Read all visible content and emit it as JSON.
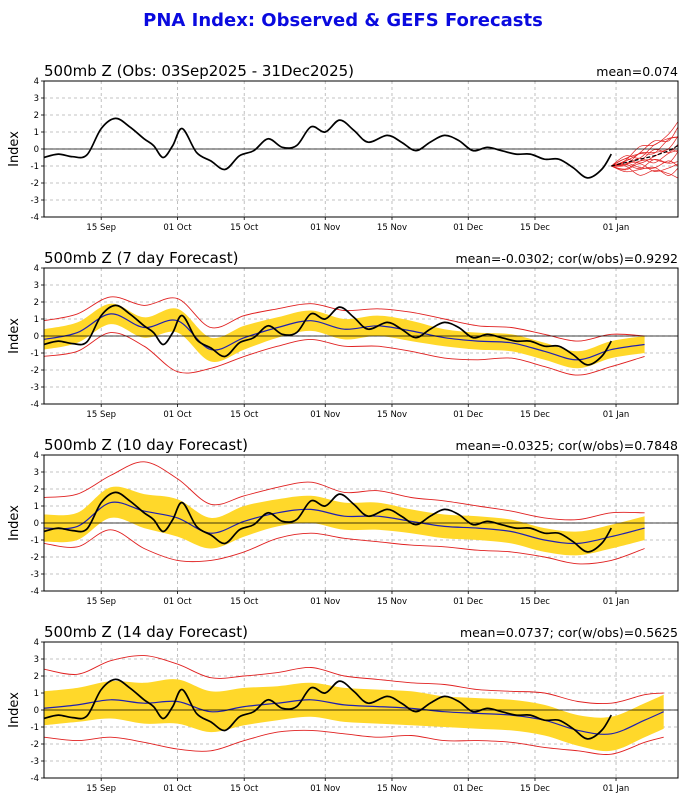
{
  "title": "PNA Index: Observed & GEFS Forecasts",
  "colors": {
    "title": "#0a0adf",
    "observed": "#000000",
    "ensemble_mean": "#2020b0",
    "spread": "#ffd82a",
    "bounds": "#e02020"
  },
  "chart_data": [
    {
      "type": "line",
      "title": "500mb Z (Obs: 03Sep2025 - 31Dec2025)",
      "stat": "mean=0.074",
      "ylabel": "Index",
      "ylim": [
        -4,
        4
      ],
      "yticks": [
        -4,
        -3,
        -2,
        -1,
        0,
        1,
        2,
        3,
        4
      ],
      "xticks": [
        "15 Sep",
        "01 Oct",
        "15 Oct",
        "01 Nov",
        "15 Nov",
        "01 Dec",
        "15 Dec",
        "01 Jan"
      ],
      "grid": true
    },
    {
      "type": "line",
      "title": "500mb Z (7 day Forecast)",
      "stat": "mean=-0.0302; cor(w/obs)=0.9292",
      "ylabel": "Index",
      "ylim": [
        -4,
        4
      ],
      "yticks": [
        -4,
        -3,
        -2,
        -1,
        0,
        1,
        2,
        3,
        4
      ],
      "xticks": [
        "15 Sep",
        "01 Oct",
        "15 Oct",
        "01 Nov",
        "15 Nov",
        "01 Dec",
        "15 Dec",
        "01 Jan"
      ],
      "grid": true
    },
    {
      "type": "line",
      "title": "500mb Z (10 day Forecast)",
      "stat": "mean=-0.0325; cor(w/obs)=0.7848",
      "ylabel": "Index",
      "ylim": [
        -4,
        4
      ],
      "yticks": [
        -4,
        -3,
        -2,
        -1,
        0,
        1,
        2,
        3,
        4
      ],
      "xticks": [
        "15 Sep",
        "01 Oct",
        "15 Oct",
        "01 Nov",
        "15 Nov",
        "01 Dec",
        "15 Dec",
        "01 Jan"
      ],
      "grid": true
    },
    {
      "type": "line",
      "title": "500mb Z (14 day Forecast)",
      "stat": "mean=0.0737; cor(w/obs)=0.5625",
      "ylabel": "Index",
      "ylim": [
        -4,
        4
      ],
      "yticks": [
        -4,
        -3,
        -2,
        -1,
        0,
        1,
        2,
        3,
        4
      ],
      "xticks": [
        "15 Sep",
        "01 Oct",
        "15 Oct",
        "01 Nov",
        "15 Nov",
        "01 Dec",
        "15 Dec",
        "01 Jan"
      ],
      "grid": true
    }
  ],
  "observed": {
    "x": [
      "2025-09-03",
      "2025-09-06",
      "2025-09-09",
      "2025-09-12",
      "2025-09-15",
      "2025-09-18",
      "2025-09-21",
      "2025-09-24",
      "2025-09-26",
      "2025-09-28",
      "2025-09-30",
      "2025-10-02",
      "2025-10-05",
      "2025-10-08",
      "2025-10-11",
      "2025-10-14",
      "2025-10-17",
      "2025-10-20",
      "2025-10-23",
      "2025-10-26",
      "2025-10-29",
      "2025-11-01",
      "2025-11-04",
      "2025-11-07",
      "2025-11-10",
      "2025-11-14",
      "2025-11-17",
      "2025-11-20",
      "2025-11-23",
      "2025-11-26",
      "2025-11-29",
      "2025-12-02",
      "2025-12-05",
      "2025-12-08",
      "2025-12-11",
      "2025-12-14",
      "2025-12-17",
      "2025-12-20",
      "2025-12-23",
      "2025-12-26",
      "2025-12-29",
      "2025-12-31"
    ],
    "y": [
      -0.5,
      -0.3,
      -0.45,
      -0.35,
      1.2,
      1.8,
      1.3,
      0.6,
      0.2,
      -0.5,
      0.2,
      1.2,
      -0.2,
      -0.7,
      -1.2,
      -0.4,
      -0.1,
      0.6,
      0.1,
      0.2,
      1.3,
      1.0,
      1.7,
      1.1,
      0.4,
      0.8,
      0.4,
      -0.1,
      0.4,
      0.8,
      0.5,
      -0.1,
      0.1,
      -0.1,
      -0.3,
      -0.3,
      -0.6,
      -0.6,
      -1.1,
      -1.7,
      -1.2,
      -0.3
    ]
  },
  "forecasts": [
    null,
    {
      "x": [
        "2025-09-03",
        "2025-09-10",
        "2025-09-17",
        "2025-09-24",
        "2025-10-01",
        "2025-10-08",
        "2025-10-15",
        "2025-10-22",
        "2025-10-29",
        "2025-11-05",
        "2025-11-12",
        "2025-11-19",
        "2025-11-26",
        "2025-12-03",
        "2025-12-10",
        "2025-12-17",
        "2025-12-24",
        "2025-12-31",
        "2026-01-07"
      ],
      "mean": [
        -0.2,
        0.2,
        1.3,
        0.5,
        0.9,
        -0.8,
        -0.1,
        0.5,
        0.9,
        0.4,
        0.6,
        0.3,
        -0.1,
        -0.3,
        -0.4,
        -0.9,
        -1.4,
        -0.8,
        -0.5
      ],
      "spread": [
        0.6,
        0.6,
        0.6,
        0.6,
        0.7,
        0.7,
        0.7,
        0.6,
        0.6,
        0.6,
        0.6,
        0.6,
        0.5,
        0.5,
        0.5,
        0.5,
        0.5,
        0.5,
        0.5
      ],
      "upper": [
        0.9,
        1.3,
        2.3,
        1.8,
        2.2,
        0.5,
        1.2,
        1.6,
        1.9,
        1.5,
        1.6,
        1.4,
        1.0,
        0.6,
        0.5,
        0.1,
        -0.3,
        0.1,
        0.0
      ],
      "lower": [
        -1.2,
        -0.9,
        0.2,
        -0.6,
        -2.1,
        -1.9,
        -1.2,
        -0.6,
        -0.2,
        -0.6,
        -0.6,
        -0.9,
        -1.3,
        -1.4,
        -1.3,
        -1.8,
        -2.3,
        -1.8,
        -1.2
      ]
    },
    {
      "x": [
        "2025-09-03",
        "2025-09-10",
        "2025-09-17",
        "2025-09-24",
        "2025-10-01",
        "2025-10-08",
        "2025-10-15",
        "2025-10-22",
        "2025-10-29",
        "2025-11-05",
        "2025-11-12",
        "2025-11-19",
        "2025-11-26",
        "2025-12-03",
        "2025-12-10",
        "2025-12-17",
        "2025-12-24",
        "2025-12-31",
        "2026-01-07"
      ],
      "mean": [
        -0.3,
        -0.2,
        1.2,
        0.7,
        0.3,
        -0.6,
        0.1,
        0.6,
        0.8,
        0.4,
        0.4,
        0.1,
        -0.2,
        -0.3,
        -0.5,
        -1.0,
        -1.2,
        -0.8,
        -0.3
      ],
      "spread": [
        0.8,
        0.8,
        0.9,
        1.0,
        1.1,
        0.9,
        0.9,
        0.8,
        0.8,
        0.8,
        0.8,
        0.7,
        0.7,
        0.7,
        0.7,
        0.7,
        0.7,
        0.7,
        0.7
      ],
      "upper": [
        1.5,
        1.7,
        2.8,
        3.6,
        2.6,
        1.1,
        1.6,
        2.1,
        2.4,
        1.8,
        1.9,
        1.5,
        1.3,
        1.0,
        0.7,
        0.3,
        0.2,
        0.6,
        0.6
      ],
      "lower": [
        -1.2,
        -1.4,
        -0.4,
        -1.5,
        -2.2,
        -2.2,
        -1.7,
        -0.9,
        -0.6,
        -0.9,
        -1.1,
        -1.3,
        -1.4,
        -1.6,
        -1.7,
        -2.0,
        -2.4,
        -2.2,
        -1.5
      ]
    },
    {
      "x": [
        "2025-09-03",
        "2025-09-10",
        "2025-09-17",
        "2025-09-24",
        "2025-10-01",
        "2025-10-08",
        "2025-10-15",
        "2025-10-22",
        "2025-10-29",
        "2025-11-05",
        "2025-11-12",
        "2025-11-19",
        "2025-11-26",
        "2025-12-03",
        "2025-12-10",
        "2025-12-17",
        "2025-12-24",
        "2025-12-31",
        "2026-01-07",
        "2026-01-11"
      ],
      "mean": [
        0.1,
        0.3,
        0.6,
        0.4,
        0.5,
        -0.1,
        0.2,
        0.4,
        0.6,
        0.3,
        0.2,
        0.1,
        -0.1,
        -0.2,
        -0.3,
        -0.6,
        -1.2,
        -1.4,
        -0.6,
        -0.1
      ],
      "spread": [
        1.0,
        1.0,
        1.1,
        1.2,
        1.3,
        1.2,
        1.1,
        1.0,
        1.0,
        1.0,
        1.0,
        1.0,
        0.9,
        0.9,
        0.9,
        0.9,
        0.9,
        1.0,
        1.0,
        1.0
      ],
      "upper": [
        2.4,
        2.1,
        2.9,
        3.2,
        2.7,
        1.9,
        2.0,
        2.2,
        2.5,
        2.0,
        1.8,
        1.6,
        1.5,
        1.2,
        1.1,
        1.0,
        0.5,
        0.4,
        0.9,
        1.0
      ],
      "lower": [
        -1.6,
        -1.8,
        -1.6,
        -1.9,
        -2.3,
        -2.4,
        -1.8,
        -1.3,
        -1.2,
        -1.4,
        -1.6,
        -1.5,
        -1.8,
        -1.8,
        -1.9,
        -2.2,
        -2.4,
        -2.6,
        -1.9,
        -1.6
      ]
    }
  ],
  "gefs_tail": {
    "x": [
      "2025-12-31",
      "2026-01-03",
      "2026-01-06",
      "2026-01-09",
      "2026-01-12",
      "2026-01-14"
    ],
    "mean": [
      -1.0,
      -0.8,
      -0.6,
      -0.4,
      -0.1,
      0.2
    ],
    "min": [
      -1.0,
      -1.2,
      -1.3,
      -1.4,
      -1.5,
      -1.5
    ],
    "max": [
      -1.0,
      -0.5,
      -0.1,
      0.4,
      0.9,
      1.4
    ]
  }
}
